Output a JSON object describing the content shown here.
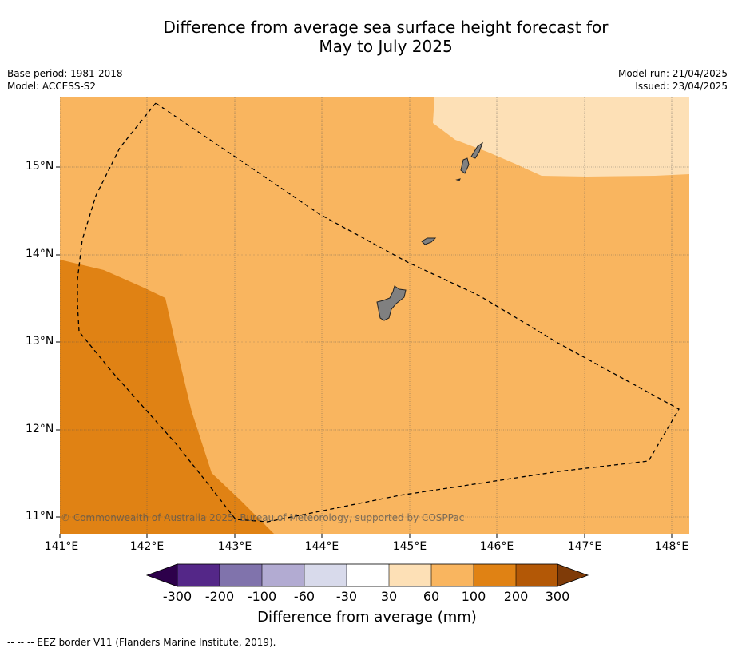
{
  "title": {
    "line1": "Difference from average sea surface height forecast for",
    "line2": "May to July 2025"
  },
  "meta": {
    "base_period": "Base period: 1981-2018",
    "model": "Model: ACCESS-S2",
    "model_run": "Model run: 21/04/2025",
    "issued": "Issued: 23/04/2025"
  },
  "map": {
    "lat_labels": [
      "15°N",
      "14°N",
      "13°N",
      "12°N",
      "11°N"
    ],
    "lon_labels": [
      "141°E",
      "142°E",
      "143°E",
      "144°E",
      "145°E",
      "146°E",
      "147°E",
      "148°E"
    ],
    "copyright": "© Commonwealth of Australia 2025, Bureau of Meteorology, supported by COSPPac",
    "colors": {
      "band_30_60": "#fde0b6",
      "band_60_100": "#f9b55f",
      "band_100_200": "#e08214",
      "land": "#808080"
    }
  },
  "colorbar": {
    "ticks": [
      "-300",
      "-200",
      "-100",
      "-60",
      "-30",
      "30",
      "60",
      "100",
      "200",
      "300"
    ],
    "colors": [
      "#2d004b",
      "#542788",
      "#8073ac",
      "#b2abd2",
      "#d8daeb",
      "#ffffff",
      "#fde0b6",
      "#f9b55f",
      "#e08214",
      "#b35806",
      "#7f3b08"
    ],
    "title": "Difference from average (mm)"
  },
  "footnote": "--  --  -- EEZ border V11 (Flanders Marine Institute, 2019)."
}
